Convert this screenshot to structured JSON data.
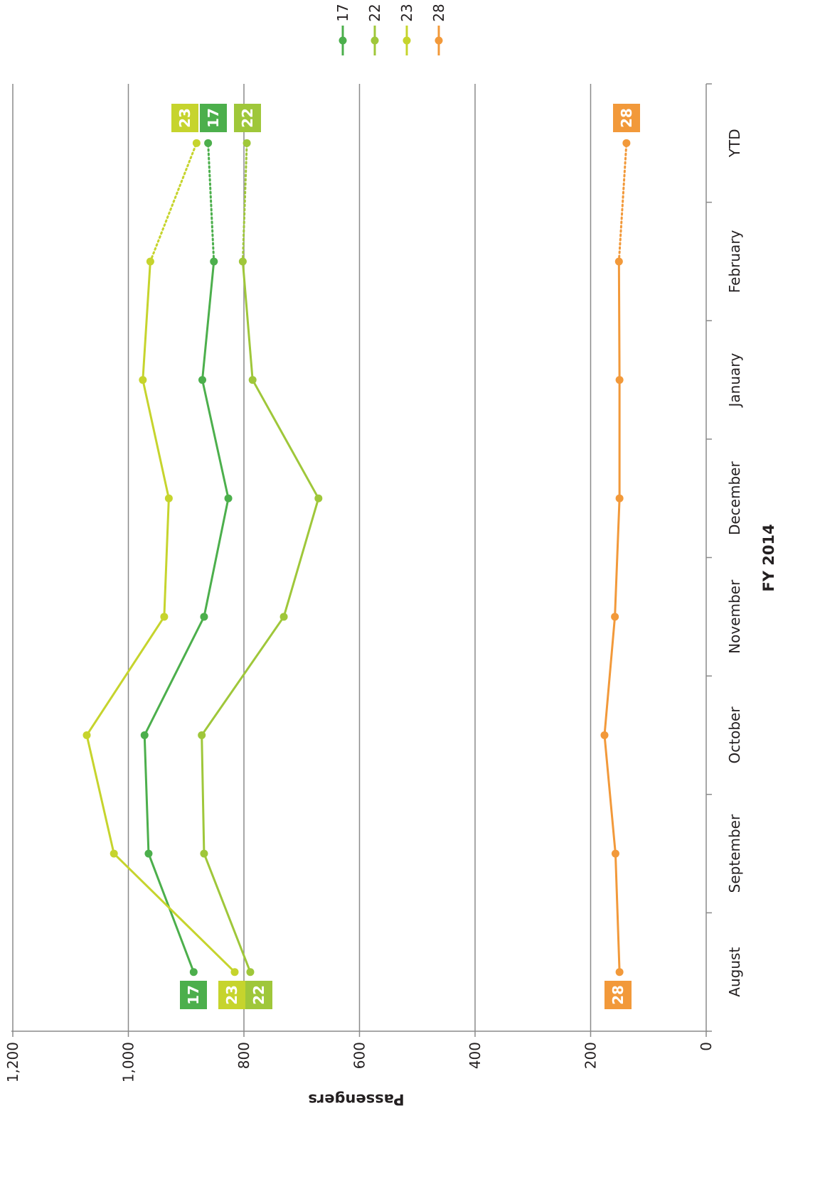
{
  "chart_data": {
    "type": "line",
    "orientation": "rotated-90",
    "categories": [
      "August",
      "September",
      "October",
      "November",
      "December",
      "January",
      "February",
      "YTD"
    ],
    "xlabel": "FY 2014",
    "ylabel": "Passengers",
    "ylim": [
      0,
      1200
    ],
    "yticks": [
      "0",
      "200",
      "400",
      "600",
      "800",
      "1,000",
      "1,200"
    ],
    "grid": true,
    "legend_position": "top-right",
    "last_segment_dotted": true,
    "series": [
      {
        "name": "17",
        "color": "#4caf4c",
        "values": [
          887,
          965,
          972,
          869,
          827,
          872,
          852,
          862
        ]
      },
      {
        "name": "22",
        "color": "#9fc73a",
        "values": [
          789,
          869,
          873,
          731,
          671,
          785,
          802,
          795
        ]
      },
      {
        "name": "23",
        "color": "#c6d42d",
        "values": [
          816,
          1025,
          1072,
          938,
          930,
          975,
          962,
          882
        ]
      },
      {
        "name": "28",
        "color": "#f2993a",
        "values": [
          150,
          157,
          176,
          158,
          150,
          150,
          151,
          138
        ]
      }
    ],
    "start_labels": [
      "17",
      "23",
      "22",
      "28"
    ],
    "end_labels": [
      "23",
      "17",
      "22",
      "28"
    ]
  }
}
